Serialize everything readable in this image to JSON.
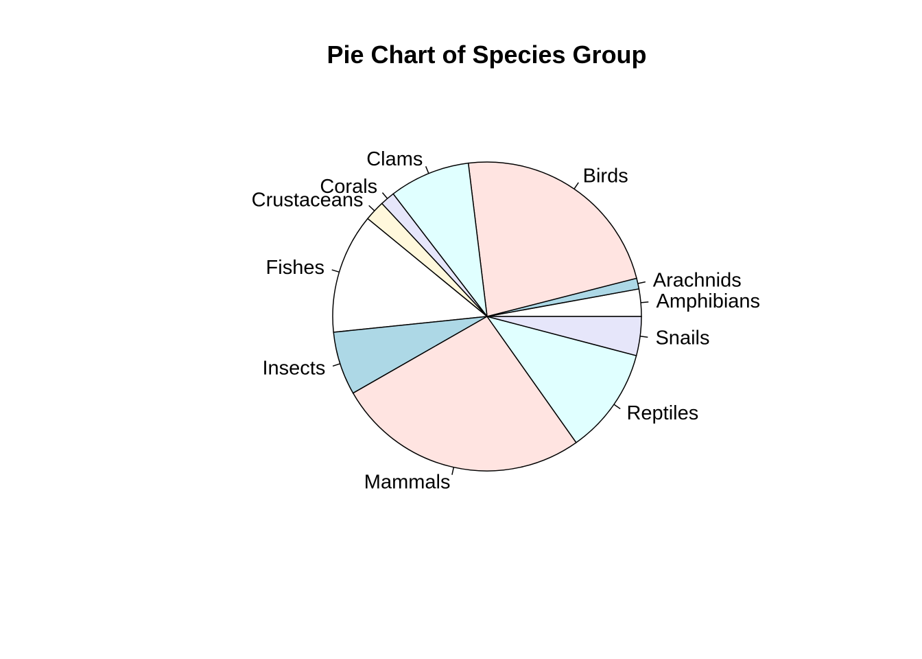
{
  "chart_data": {
    "type": "pie",
    "title": "Pie Chart of Species Group",
    "categories": [
      "Amphibians",
      "Arachnids",
      "Birds",
      "Clams",
      "Corals",
      "Crustaceans",
      "Fishes",
      "Insects",
      "Mammals",
      "Reptiles",
      "Snails"
    ],
    "values": [
      2.8,
      1.1,
      22.5,
      8.3,
      1.5,
      2.1,
      12.3,
      6.5,
      26.0,
      10.9,
      4.0
    ],
    "unit": "",
    "colors": [
      "#ffffff",
      "#add8e6",
      "#ffe4e1",
      "#e0ffff",
      "#e6e6fa",
      "#fff8dc",
      "#ffffff",
      "#add8e6",
      "#ffe4e1",
      "#e0ffff",
      "#e6e6fa"
    ],
    "start_angle_deg": 0,
    "direction": "counterclockwise",
    "slice_border_color": "#000000",
    "legend": "none (labels placed next to slices)"
  }
}
